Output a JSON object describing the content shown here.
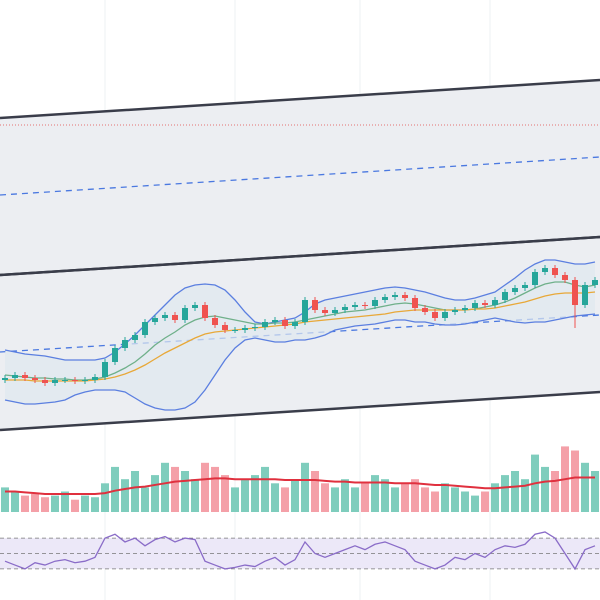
{
  "chart_data": [
    {
      "type": "candlestick",
      "ylim": [
        0,
        440
      ],
      "up_color": "#26a69a",
      "down_color": "#ef5350",
      "hline": 315,
      "hline_color": "#e57373",
      "channels": [
        {
          "upper": [
            322,
            360
          ],
          "lower": [
            165,
            203
          ],
          "mid": [
            245,
            283
          ],
          "fill": "#eceef2",
          "color": "#3a3d4a",
          "mid_color": "#4a78e0"
        },
        {
          "upper": [
            165,
            203
          ],
          "lower": [
            10,
            48
          ],
          "mid": [
            88,
            125
          ],
          "fill": "#eceef2",
          "color": "#3a3d4a",
          "mid_color": "#4a78e0"
        }
      ],
      "open": [
        60,
        62,
        65,
        62,
        60,
        57,
        60,
        60,
        59,
        60,
        63,
        78,
        92,
        100,
        105,
        118,
        122,
        125,
        120,
        132,
        135,
        122,
        115,
        110,
        110,
        112,
        113,
        118,
        120,
        114,
        118,
        140,
        130,
        127,
        130,
        133,
        135,
        134,
        140,
        143,
        145,
        142,
        132,
        128,
        122,
        128,
        130,
        132,
        137,
        135,
        140,
        148,
        152,
        155,
        168,
        172,
        165,
        160,
        135,
        155
      ],
      "high": [
        65,
        68,
        68,
        65,
        63,
        63,
        63,
        63,
        63,
        66,
        81,
        95,
        103,
        108,
        121,
        125,
        128,
        128,
        135,
        138,
        138,
        125,
        118,
        113,
        115,
        116,
        121,
        123,
        123,
        121,
        143,
        143,
        133,
        133,
        136,
        138,
        138,
        143,
        146,
        148,
        148,
        145,
        135,
        131,
        131,
        133,
        135,
        140,
        140,
        143,
        151,
        155,
        158,
        171,
        175,
        175,
        168,
        163,
        158,
        163
      ],
      "low": [
        57,
        59,
        59,
        57,
        54,
        54,
        57,
        56,
        56,
        57,
        60,
        75,
        89,
        97,
        102,
        115,
        119,
        117,
        117,
        129,
        119,
        112,
        107,
        107,
        107,
        109,
        110,
        115,
        111,
        111,
        115,
        127,
        124,
        124,
        127,
        130,
        131,
        131,
        137,
        140,
        139,
        129,
        125,
        119,
        119,
        125,
        127,
        129,
        132,
        132,
        137,
        145,
        149,
        152,
        165,
        162,
        157,
        112,
        132,
        152
      ],
      "close": [
        62,
        65,
        62,
        60,
        57,
        60,
        60,
        59,
        60,
        63,
        78,
        92,
        100,
        105,
        118,
        122,
        125,
        120,
        132,
        135,
        122,
        115,
        110,
        110,
        112,
        113,
        118,
        120,
        114,
        118,
        140,
        130,
        127,
        130,
        133,
        135,
        134,
        140,
        143,
        145,
        142,
        132,
        128,
        122,
        128,
        130,
        132,
        137,
        135,
        140,
        148,
        152,
        155,
        168,
        172,
        165,
        160,
        135,
        155,
        160
      ],
      "bands": {
        "upper": [
          90,
          88,
          86,
          85,
          84,
          82,
          80,
          80,
          80,
          80,
          82,
          88,
          96,
          105,
          115,
          125,
          135,
          145,
          152,
          155,
          156,
          155,
          150,
          140,
          128,
          118,
          116,
          118,
          120,
          122,
          128,
          136,
          140,
          142,
          144,
          146,
          148,
          150,
          152,
          153,
          152,
          150,
          148,
          145,
          142,
          140,
          140,
          142,
          145,
          148,
          155,
          162,
          170,
          176,
          180,
          180,
          178,
          176,
          176,
          178
        ],
        "lower": [
          40,
          38,
          36,
          36,
          37,
          38,
          40,
          45,
          48,
          50,
          50,
          50,
          48,
          42,
          36,
          32,
          30,
          30,
          32,
          38,
          50,
          65,
          80,
          92,
          100,
          102,
          100,
          98,
          98,
          100,
          100,
          102,
          105,
          110,
          112,
          114,
          115,
          116,
          118,
          120,
          120,
          118,
          118,
          116,
          115,
          115,
          116,
          118,
          120,
          122,
          120,
          118,
          117,
          118,
          118,
          120,
          122,
          124,
          125,
          126
        ],
        "color": "#5b7fe0",
        "fill": "#dfe8ef"
      },
      "series": [
        {
          "color": "#6fb08a",
          "values": [
            65,
            64,
            63,
            62,
            62,
            61,
            61,
            60,
            60,
            61,
            63,
            67,
            72,
            78,
            86,
            95,
            102,
            108,
            115,
            120,
            123,
            124,
            122,
            120,
            118,
            116,
            116,
            117,
            117,
            118,
            120,
            122,
            124,
            126,
            128,
            129,
            130,
            132,
            134,
            136,
            137,
            136,
            134,
            132,
            130,
            130,
            130,
            131,
            133,
            135,
            138,
            142,
            147,
            152,
            156,
            158,
            158,
            155,
            153,
            155
          ]
        },
        {
          "color": "#e8a838",
          "values": [
            60,
            60,
            60,
            59,
            59,
            59,
            59,
            59,
            59,
            60,
            61,
            63,
            66,
            70,
            75,
            81,
            87,
            92,
            97,
            102,
            106,
            108,
            109,
            110,
            111,
            112,
            113,
            114,
            115,
            116,
            118,
            119,
            120,
            121,
            122,
            123,
            124,
            125,
            126,
            128,
            129,
            130,
            130,
            130,
            130,
            130,
            130,
            131,
            131,
            132,
            134,
            136,
            138,
            141,
            144,
            146,
            147,
            147,
            147,
            148
          ]
        }
      ]
    },
    {
      "type": "bar",
      "ylim": [
        0,
        100
      ],
      "up_color": "#7fcdbd",
      "down_color": "#f4a0a8",
      "values": [
        30,
        25,
        20,
        22,
        18,
        20,
        25,
        15,
        20,
        18,
        35,
        55,
        40,
        50,
        30,
        45,
        60,
        55,
        50,
        40,
        60,
        55,
        45,
        30,
        40,
        45,
        55,
        35,
        30,
        40,
        60,
        50,
        35,
        30,
        40,
        30,
        35,
        45,
        40,
        30,
        35,
        40,
        30,
        25,
        35,
        30,
        25,
        20,
        25,
        35,
        45,
        50,
        40,
        70,
        55,
        50,
        80,
        75,
        60,
        50
      ],
      "series": [
        {
          "color": "#e0303e",
          "values": [
            25,
            25,
            24,
            23,
            22,
            22,
            22,
            22,
            22,
            22,
            23,
            26,
            28,
            30,
            31,
            33,
            35,
            37,
            38,
            39,
            40,
            41,
            41,
            40,
            40,
            40,
            40,
            40,
            39,
            39,
            39,
            39,
            38,
            37,
            37,
            36,
            36,
            36,
            36,
            35,
            35,
            35,
            34,
            33,
            33,
            32,
            31,
            30,
            29,
            29,
            30,
            31,
            32,
            35,
            37,
            38,
            40,
            42,
            42,
            42
          ]
        }
      ]
    },
    {
      "type": "line",
      "ylim": [
        0,
        100
      ],
      "levels": [
        70,
        50,
        30
      ],
      "level_color": "#777",
      "fill": "#ece8f8",
      "series": [
        {
          "color": "#8a6cc8",
          "values": [
            40,
            35,
            30,
            38,
            35,
            40,
            42,
            38,
            40,
            45,
            70,
            75,
            65,
            70,
            60,
            68,
            72,
            65,
            70,
            68,
            40,
            35,
            30,
            32,
            35,
            33,
            40,
            45,
            35,
            42,
            65,
            50,
            45,
            50,
            55,
            60,
            55,
            62,
            65,
            60,
            55,
            40,
            35,
            30,
            35,
            45,
            42,
            50,
            45,
            55,
            60,
            58,
            62,
            75,
            78,
            70,
            50,
            30,
            55,
            60
          ]
        }
      ]
    }
  ]
}
